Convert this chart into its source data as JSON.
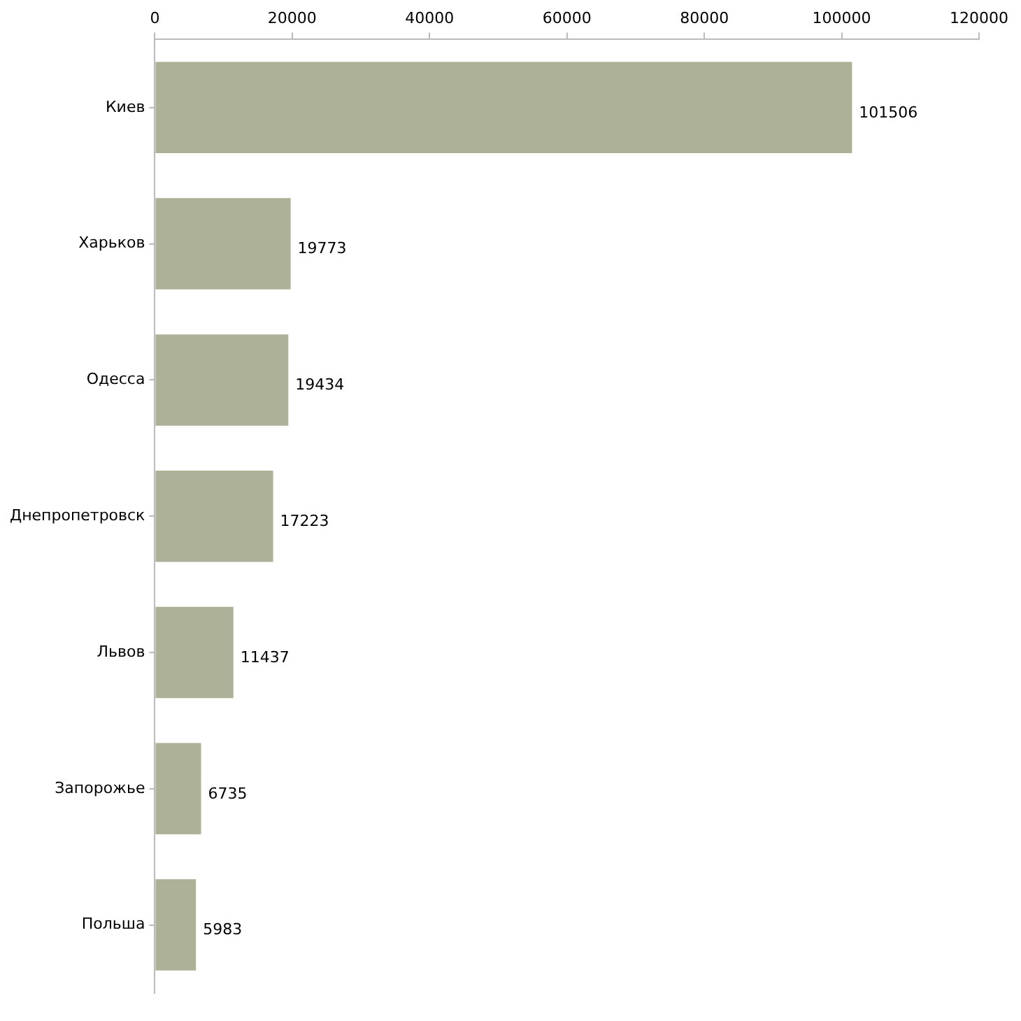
{
  "chart_data": {
    "type": "bar",
    "orientation": "horizontal",
    "categories": [
      "Киев",
      "Харьков",
      "Одесса",
      "Днепропетровск",
      "Львов",
      "Запорожье",
      "Польша"
    ],
    "values": [
      101506,
      19773,
      19434,
      17223,
      11437,
      6735,
      5983
    ],
    "color": "#acb197",
    "xlim": [
      0,
      120000
    ],
    "xticks": [
      0,
      20000,
      40000,
      60000,
      80000,
      100000,
      120000
    ],
    "data_labels": true,
    "grid": false,
    "legend": false
  }
}
